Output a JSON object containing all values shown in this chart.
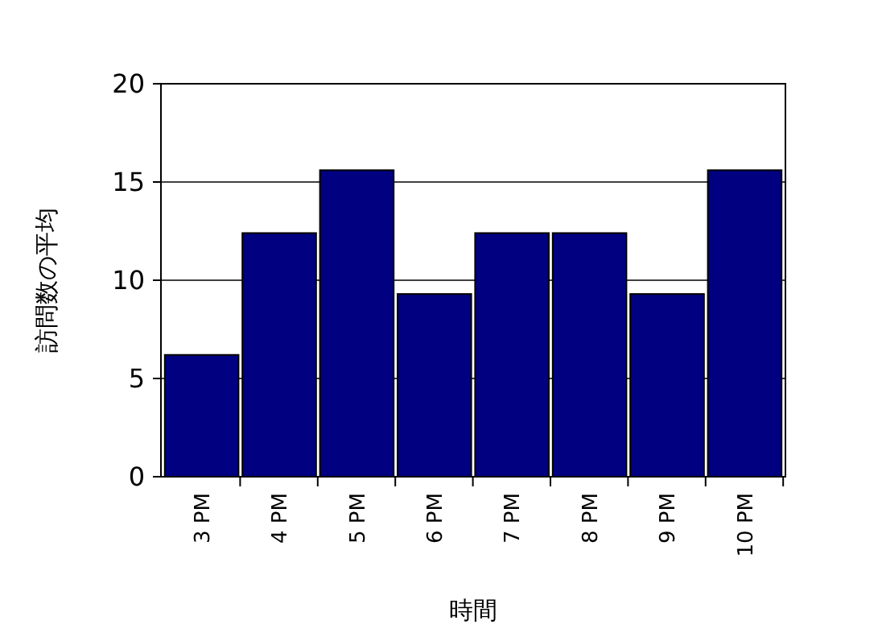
{
  "chart_data": {
    "type": "bar",
    "xlabel": "時間",
    "ylabel": "訪問数の平均",
    "categories": [
      "3 PM",
      "4 PM",
      "5 PM",
      "6 PM",
      "7 PM",
      "8 PM",
      "9 PM",
      "10 PM"
    ],
    "values": [
      6.2,
      12.4,
      15.6,
      9.3,
      12.4,
      12.4,
      9.3,
      15.6
    ],
    "color": "#000080",
    "ylim": [
      0,
      20
    ],
    "yticks": [
      0,
      5,
      10,
      15,
      20
    ],
    "grid": "y"
  }
}
